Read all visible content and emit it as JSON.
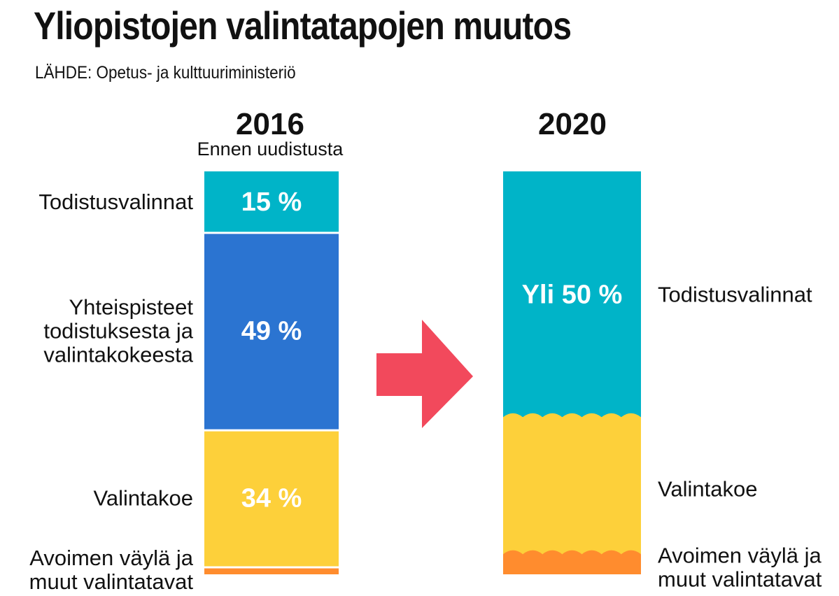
{
  "title": "Yliopistojen valintatapojen muutos",
  "source": "LÄHDE:  Opetus- ja kulttuuriministeriö",
  "colors": {
    "todistus": "#00b4c8",
    "yhteis": "#2b74d1",
    "valintakoe": "#fdd03a",
    "avoin": "#ff8c2e",
    "arrow": "#f2495c"
  },
  "chart_data": [
    {
      "type": "bar",
      "title": "2016",
      "subtitle": "Ennen uudistusta",
      "stacked": true,
      "categories": [
        "Todistusvalinnat",
        "Yhteispisteet todistuksesta ja valintakokeesta",
        "Valintakoe",
        "Avoimen väylä ja muut valintatavat"
      ],
      "series": [
        {
          "name": "Todistusvalinnat",
          "label_lines": [
            "Todistusvalinnat"
          ],
          "value": 15,
          "value_label": "15 %",
          "color": "#00b4c8"
        },
        {
          "name": "Yhteispisteet todistuksesta ja valintakokeesta",
          "label_lines": [
            "Yhteispisteet",
            "todistuksesta ja",
            "valintakokeesta"
          ],
          "value": 49,
          "value_label": "49 %",
          "color": "#2b74d1"
        },
        {
          "name": "Valintakoe",
          "label_lines": [
            "Valintakoe"
          ],
          "value": 34,
          "value_label": "34 %",
          "color": "#fdd03a"
        },
        {
          "name": "Avoimen väylä ja muut valintatavat",
          "label_lines": [
            "Avoimen väylä ja",
            "muut valintatavat"
          ],
          "value": 2,
          "value_label": "",
          "color": "#ff8c2e"
        }
      ]
    },
    {
      "type": "bar",
      "title": "2020",
      "subtitle": "",
      "stacked": true,
      "categories": [
        "Todistusvalinnat",
        "Valintakoe",
        "Avoimen väylä ja muut valintatavat"
      ],
      "series": [
        {
          "name": "Todistusvalinnat",
          "label_lines": [
            "Todistusvalinnat"
          ],
          "value": 61,
          "value_label": "Yli 50 %",
          "color": "#00b4c8"
        },
        {
          "name": "Valintakoe",
          "label_lines": [
            "Valintakoe"
          ],
          "value": 34,
          "value_label": "",
          "color": "#fdd03a"
        },
        {
          "name": "Avoimen väylä ja muut valintatavat",
          "label_lines": [
            "Avoimen väylä ja",
            "muut valintatavat"
          ],
          "value": 5,
          "value_label": "",
          "color": "#ff8c2e"
        }
      ]
    }
  ]
}
